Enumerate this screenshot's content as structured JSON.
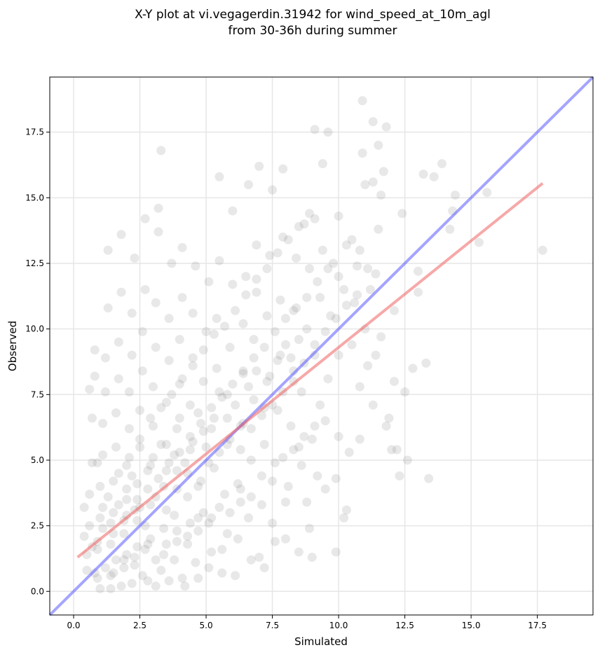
{
  "chart_data": {
    "type": "scatter",
    "title_line1": "X-Y plot at vi.vegagerdin.31942 for wind_speed_at_10m_agl",
    "title_line2": "from 30-36h during summer",
    "xlabel": "Simulated",
    "ylabel": "Observed",
    "xlim": [
      -0.9,
      19.6
    ],
    "ylim": [
      -0.9,
      19.6
    ],
    "x_ticks": [
      0.0,
      2.5,
      5.0,
      7.5,
      10.0,
      12.5,
      15.0,
      17.5
    ],
    "y_ticks": [
      0.0,
      2.5,
      5.0,
      7.5,
      10.0,
      12.5,
      15.0,
      17.5
    ],
    "x_tick_labels": [
      "0.0",
      "2.5",
      "5.0",
      "7.5",
      "10.0",
      "12.5",
      "15.0",
      "17.5"
    ],
    "y_tick_labels": [
      "0.0",
      "2.5",
      "5.0",
      "7.5",
      "10.0",
      "12.5",
      "15.0",
      "17.5"
    ],
    "grid": true,
    "point_color": "#808080",
    "identity_line": {
      "color": "#4a4aff",
      "from": [
        -0.9,
        -0.9
      ],
      "to": [
        19.6,
        19.6
      ]
    },
    "fit_line": {
      "color": "#f06060",
      "from": [
        0.15,
        1.3
      ],
      "to": [
        17.7,
        15.55
      ]
    },
    "points": [
      [
        17.7,
        13.0
      ],
      [
        15.6,
        15.2
      ],
      [
        15.3,
        13.3
      ],
      [
        14.4,
        15.1
      ],
      [
        14.3,
        14.5
      ],
      [
        14.2,
        13.8
      ],
      [
        13.9,
        16.3
      ],
      [
        13.6,
        15.8
      ],
      [
        13.4,
        4.3
      ],
      [
        13.3,
        8.7
      ],
      [
        13.2,
        15.9
      ],
      [
        13.0,
        12.2
      ],
      [
        13.0,
        11.4
      ],
      [
        12.8,
        8.5
      ],
      [
        12.6,
        5.0
      ],
      [
        12.5,
        7.6
      ],
      [
        12.4,
        14.4
      ],
      [
        12.3,
        4.4
      ],
      [
        12.2,
        5.4
      ],
      [
        12.1,
        8.0
      ],
      [
        12.1,
        10.7
      ],
      [
        11.9,
        6.6
      ],
      [
        11.8,
        17.7
      ],
      [
        11.8,
        6.3
      ],
      [
        11.7,
        16.0
      ],
      [
        11.6,
        15.1
      ],
      [
        11.6,
        9.7
      ],
      [
        11.5,
        17.0
      ],
      [
        11.5,
        13.8
      ],
      [
        11.4,
        12.1
      ],
      [
        11.3,
        17.9
      ],
      [
        11.3,
        15.6
      ],
      [
        11.3,
        7.1
      ],
      [
        11.2,
        11.5
      ],
      [
        11.1,
        8.6
      ],
      [
        11.0,
        15.5
      ],
      [
        11.0,
        10.0
      ],
      [
        10.9,
        18.7
      ],
      [
        10.9,
        16.7
      ],
      [
        10.8,
        13.0
      ],
      [
        10.8,
        7.8
      ],
      [
        10.8,
        5.8
      ],
      [
        10.7,
        12.4
      ],
      [
        10.6,
        11.0
      ],
      [
        10.5,
        13.4
      ],
      [
        10.5,
        9.4
      ],
      [
        10.4,
        5.3
      ],
      [
        10.3,
        13.2
      ],
      [
        10.2,
        11.5
      ],
      [
        10.2,
        2.8
      ],
      [
        10.0,
        14.3
      ],
      [
        10.0,
        12.0
      ],
      [
        10.0,
        9.0
      ],
      [
        10.0,
        5.9
      ],
      [
        9.9,
        4.3
      ],
      [
        9.9,
        1.5
      ],
      [
        9.8,
        12.5
      ],
      [
        9.7,
        10.5
      ],
      [
        9.6,
        17.5
      ],
      [
        9.6,
        8.1
      ],
      [
        9.5,
        6.5
      ],
      [
        9.4,
        13.0
      ],
      [
        9.4,
        16.3
      ],
      [
        9.3,
        11.2
      ],
      [
        9.3,
        7.1
      ],
      [
        9.2,
        4.4
      ],
      [
        9.1,
        17.6
      ],
      [
        9.1,
        14.2
      ],
      [
        9.1,
        9.0
      ],
      [
        9.0,
        5.8
      ],
      [
        9.0,
        1.3
      ],
      [
        8.9,
        12.3
      ],
      [
        8.8,
        10.0
      ],
      [
        8.8,
        3.4
      ],
      [
        8.7,
        14.0
      ],
      [
        8.6,
        7.6
      ],
      [
        8.5,
        5.5
      ],
      [
        8.5,
        1.5
      ],
      [
        8.4,
        12.7
      ],
      [
        8.3,
        10.7
      ],
      [
        8.3,
        8.4
      ],
      [
        8.2,
        6.3
      ],
      [
        8.1,
        4.0
      ],
      [
        8.0,
        2.0
      ],
      [
        7.9,
        16.1
      ],
      [
        7.9,
        13.5
      ],
      [
        7.8,
        11.1
      ],
      [
        7.8,
        9.0
      ],
      [
        7.7,
        6.9
      ],
      [
        7.6,
        4.9
      ],
      [
        7.5,
        2.6
      ],
      [
        7.5,
        15.3
      ],
      [
        7.4,
        12.8
      ],
      [
        7.3,
        10.5
      ],
      [
        7.3,
        8.0
      ],
      [
        7.2,
        5.6
      ],
      [
        7.1,
        3.3
      ],
      [
        7.0,
        1.3
      ],
      [
        7.0,
        16.2
      ],
      [
        6.9,
        13.2
      ],
      [
        6.9,
        11.4
      ],
      [
        6.8,
        9.6
      ],
      [
        6.8,
        7.3
      ],
      [
        6.7,
        5.0
      ],
      [
        6.6,
        2.8
      ],
      [
        6.6,
        15.5
      ],
      [
        6.5,
        12.0
      ],
      [
        6.4,
        10.2
      ],
      [
        6.4,
        8.4
      ],
      [
        6.3,
        6.3
      ],
      [
        6.2,
        4.1
      ],
      [
        6.2,
        2.0
      ],
      [
        6.1,
        0.6
      ],
      [
        6.0,
        14.5
      ],
      [
        6.0,
        11.7
      ],
      [
        5.9,
        9.3
      ],
      [
        5.8,
        7.5
      ],
      [
        5.8,
        5.6
      ],
      [
        5.7,
        3.7
      ],
      [
        5.6,
        1.6
      ],
      [
        5.5,
        15.8
      ],
      [
        5.5,
        12.6
      ],
      [
        5.4,
        10.4
      ],
      [
        5.4,
        8.5
      ],
      [
        5.3,
        6.6
      ],
      [
        5.3,
        4.7
      ],
      [
        5.2,
        2.8
      ],
      [
        5.1,
        0.9
      ],
      [
        5.1,
        11.8
      ],
      [
        5.0,
        9.9
      ],
      [
        4.9,
        8.0
      ],
      [
        4.9,
        6.1
      ],
      [
        4.8,
        4.2
      ],
      [
        4.7,
        2.3
      ],
      [
        4.7,
        0.5
      ],
      [
        4.6,
        12.4
      ],
      [
        4.5,
        10.6
      ],
      [
        4.5,
        8.9
      ],
      [
        4.4,
        7.1
      ],
      [
        4.4,
        5.4
      ],
      [
        4.3,
        3.6
      ],
      [
        4.3,
        1.8
      ],
      [
        4.2,
        0.2
      ],
      [
        4.1,
        13.1
      ],
      [
        4.1,
        11.2
      ],
      [
        4.0,
        9.6
      ],
      [
        4.0,
        7.9
      ],
      [
        3.9,
        6.2
      ],
      [
        3.9,
        4.6
      ],
      [
        3.8,
        2.9
      ],
      [
        3.8,
        1.2
      ],
      [
        3.7,
        12.5
      ],
      [
        3.6,
        10.4
      ],
      [
        3.6,
        8.8
      ],
      [
        3.5,
        7.2
      ],
      [
        3.5,
        5.6
      ],
      [
        3.4,
        4.0
      ],
      [
        3.4,
        2.4
      ],
      [
        3.3,
        0.8
      ],
      [
        3.3,
        16.8
      ],
      [
        3.2,
        14.6
      ],
      [
        3.2,
        13.7
      ],
      [
        3.1,
        11.0
      ],
      [
        3.1,
        9.3
      ],
      [
        3.0,
        7.8
      ],
      [
        3.0,
        6.3
      ],
      [
        2.9,
        4.8
      ],
      [
        2.9,
        3.3
      ],
      [
        2.8,
        1.8
      ],
      [
        2.8,
        0.4
      ],
      [
        2.7,
        14.2
      ],
      [
        2.7,
        11.5
      ],
      [
        2.6,
        9.9
      ],
      [
        2.6,
        8.4
      ],
      [
        2.5,
        6.9
      ],
      [
        2.5,
        5.5
      ],
      [
        2.4,
        4.1
      ],
      [
        2.4,
        2.7
      ],
      [
        2.3,
        1.3
      ],
      [
        2.3,
        12.7
      ],
      [
        2.2,
        10.6
      ],
      [
        2.2,
        9.0
      ],
      [
        2.1,
        7.6
      ],
      [
        2.1,
        6.2
      ],
      [
        2.0,
        4.8
      ],
      [
        2.0,
        3.5
      ],
      [
        1.9,
        2.2
      ],
      [
        1.9,
        0.9
      ],
      [
        1.8,
        13.6
      ],
      [
        1.8,
        11.4
      ],
      [
        1.7,
        9.5
      ],
      [
        1.7,
        8.1
      ],
      [
        1.6,
        6.8
      ],
      [
        1.6,
        5.5
      ],
      [
        1.5,
        4.2
      ],
      [
        1.5,
        3.0
      ],
      [
        1.4,
        1.8
      ],
      [
        1.4,
        0.6
      ],
      [
        1.3,
        13.0
      ],
      [
        1.3,
        10.8
      ],
      [
        1.2,
        8.9
      ],
      [
        1.2,
        7.6
      ],
      [
        1.1,
        6.4
      ],
      [
        1.1,
        5.2
      ],
      [
        1.0,
        4.0
      ],
      [
        1.0,
        2.8
      ],
      [
        0.9,
        1.6
      ],
      [
        0.9,
        0.5
      ],
      [
        0.8,
        9.2
      ],
      [
        0.8,
        8.2
      ],
      [
        0.7,
        6.6
      ],
      [
        0.7,
        4.9
      ],
      [
        0.6,
        3.7
      ],
      [
        0.6,
        2.5
      ],
      [
        0.5,
        1.4
      ],
      [
        0.5,
        0.8
      ],
      [
        0.6,
        7.7
      ],
      [
        0.9,
        4.9
      ],
      [
        0.4,
        2.1
      ],
      [
        0.4,
        3.2
      ],
      [
        12.0,
        5.4
      ],
      [
        11.4,
        9.0
      ],
      [
        10.3,
        3.1
      ],
      [
        9.5,
        3.9
      ],
      [
        8.9,
        2.4
      ],
      [
        8.6,
        4.8
      ],
      [
        8.0,
        3.4
      ],
      [
        7.6,
        1.9
      ],
      [
        7.2,
        0.9
      ],
      [
        6.7,
        1.2
      ],
      [
        6.3,
        3.4
      ],
      [
        5.8,
        2.2
      ],
      [
        5.6,
        0.7
      ],
      [
        5.2,
        1.5
      ],
      [
        4.9,
        3.0
      ],
      [
        4.6,
        1.1
      ],
      [
        4.4,
        2.6
      ],
      [
        4.1,
        0.5
      ],
      [
        3.9,
        1.9
      ],
      [
        3.6,
        0.4
      ],
      [
        3.4,
        1.4
      ],
      [
        3.1,
        0.2
      ],
      [
        2.9,
        2.0
      ],
      [
        2.6,
        0.6
      ],
      [
        2.4,
        1.7
      ],
      [
        2.2,
        0.3
      ],
      [
        2.0,
        1.4
      ],
      [
        1.8,
        0.2
      ],
      [
        1.6,
        1.2
      ],
      [
        1.4,
        0.1
      ],
      [
        1.2,
        0.9
      ],
      [
        1.0,
        0.1
      ],
      [
        0.8,
        0.7
      ],
      [
        0.7,
        1.7
      ],
      [
        1.1,
        2.4
      ],
      [
        1.5,
        2.2
      ],
      [
        1.9,
        2.7
      ],
      [
        2.3,
        3.1
      ],
      [
        2.7,
        2.5
      ],
      [
        3.1,
        3.6
      ],
      [
        3.5,
        3.1
      ],
      [
        3.9,
        3.9
      ],
      [
        4.3,
        4.5
      ],
      [
        4.7,
        4.0
      ],
      [
        5.1,
        4.9
      ],
      [
        5.5,
        5.3
      ],
      [
        5.9,
        5.8
      ],
      [
        6.3,
        5.4
      ],
      [
        6.7,
        6.2
      ],
      [
        7.1,
        6.7
      ],
      [
        7.5,
        7.1
      ],
      [
        7.9,
        7.6
      ],
      [
        8.3,
        8.0
      ],
      [
        8.7,
        8.7
      ],
      [
        9.1,
        9.4
      ],
      [
        9.5,
        9.9
      ],
      [
        9.9,
        10.4
      ],
      [
        10.3,
        10.9
      ],
      [
        10.7,
        11.3
      ],
      [
        11.1,
        12.3
      ],
      [
        1.3,
        3.6
      ],
      [
        1.7,
        4.5
      ],
      [
        2.1,
        5.1
      ],
      [
        2.5,
        5.8
      ],
      [
        2.9,
        6.6
      ],
      [
        3.3,
        7.0
      ],
      [
        3.7,
        7.5
      ],
      [
        4.1,
        8.1
      ],
      [
        4.5,
        8.6
      ],
      [
        4.9,
        9.2
      ],
      [
        5.3,
        9.8
      ],
      [
        5.7,
        10.1
      ],
      [
        6.1,
        10.7
      ],
      [
        6.5,
        11.3
      ],
      [
        6.9,
        11.9
      ],
      [
        7.3,
        12.3
      ],
      [
        7.7,
        12.9
      ],
      [
        8.1,
        13.4
      ],
      [
        8.5,
        13.9
      ],
      [
        8.9,
        14.4
      ],
      [
        2.0,
        2.9
      ],
      [
        2.4,
        3.5
      ],
      [
        2.8,
        3.9
      ],
      [
        3.2,
        4.3
      ],
      [
        3.6,
        4.9
      ],
      [
        4.0,
        5.3
      ],
      [
        4.4,
        5.9
      ],
      [
        4.8,
        6.4
      ],
      [
        5.2,
        7.0
      ],
      [
        5.6,
        7.4
      ],
      [
        6.0,
        7.9
      ],
      [
        6.4,
        8.3
      ],
      [
        6.8,
        8.9
      ],
      [
        7.2,
        9.3
      ],
      [
        7.6,
        9.9
      ],
      [
        8.0,
        10.4
      ],
      [
        8.4,
        10.8
      ],
      [
        8.8,
        11.2
      ],
      [
        9.2,
        11.8
      ],
      [
        9.6,
        12.3
      ],
      [
        1.5,
        0.7
      ],
      [
        1.9,
        1.2
      ],
      [
        2.3,
        1.0
      ],
      [
        2.7,
        1.6
      ],
      [
        3.1,
        1.2
      ],
      [
        3.5,
        1.8
      ],
      [
        3.9,
        2.3
      ],
      [
        4.3,
        2.1
      ],
      [
        4.7,
        2.8
      ],
      [
        5.1,
        2.6
      ],
      [
        5.5,
        3.2
      ],
      [
        5.9,
        3.0
      ],
      [
        6.3,
        3.9
      ],
      [
        6.7,
        3.6
      ],
      [
        7.1,
        4.4
      ],
      [
        7.5,
        4.2
      ],
      [
        7.9,
        5.1
      ],
      [
        8.3,
        5.4
      ],
      [
        8.7,
        5.9
      ],
      [
        9.1,
        6.3
      ],
      [
        0.9,
        1.9
      ],
      [
        1.1,
        3.2
      ],
      [
        1.4,
        2.6
      ],
      [
        1.7,
        3.3
      ],
      [
        2.0,
        3.9
      ],
      [
        2.2,
        4.4
      ],
      [
        2.5,
        3.2
      ],
      [
        2.8,
        4.6
      ],
      [
        3.0,
        5.1
      ],
      [
        3.3,
        5.6
      ],
      [
        3.5,
        4.6
      ],
      [
        3.8,
        5.2
      ],
      [
        4.0,
        6.6
      ],
      [
        4.2,
        4.9
      ],
      [
        4.5,
        5.7
      ],
      [
        4.7,
        6.8
      ],
      [
        5.0,
        5.5
      ],
      [
        5.2,
        6.2
      ],
      [
        5.5,
        7.6
      ],
      [
        5.8,
        6.6
      ],
      [
        6.1,
        7.1
      ],
      [
        6.4,
        6.4
      ],
      [
        6.6,
        7.8
      ],
      [
        6.9,
        8.4
      ],
      [
        7.2,
        7.0
      ],
      [
        7.4,
        8.2
      ],
      [
        7.7,
        8.8
      ],
      [
        8.0,
        9.4
      ],
      [
        8.2,
        8.9
      ],
      [
        8.5,
        9.6
      ]
    ]
  }
}
